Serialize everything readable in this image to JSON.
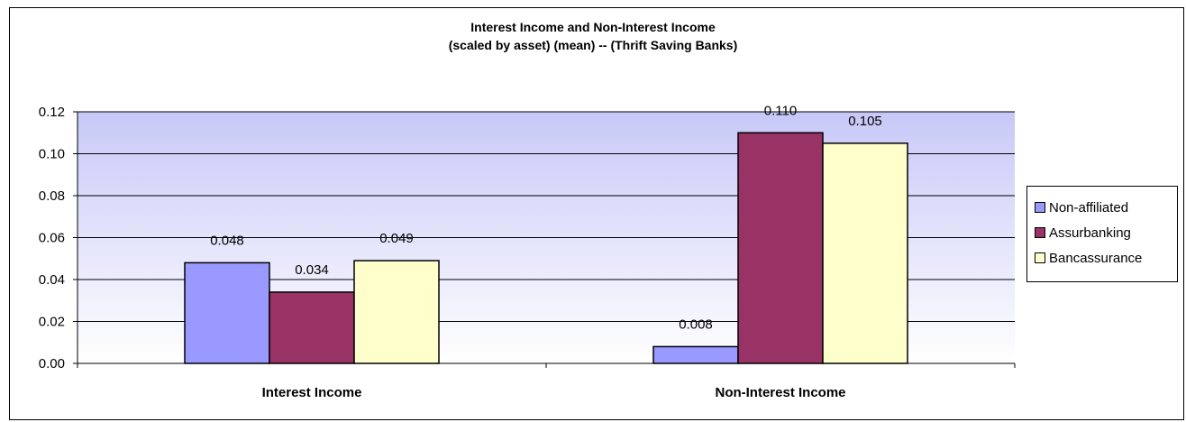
{
  "chart_data": {
    "type": "bar",
    "title": "Interest Income and Non-Interest Income",
    "subtitle": "(scaled by asset) (mean) -- (Thrift Saving Banks)",
    "categories": [
      "Interest Income",
      "Non-Interest Income"
    ],
    "series": [
      {
        "name": "Non-affiliated",
        "values": [
          0.048,
          0.008
        ],
        "labels": [
          "0.048",
          "0.008"
        ],
        "color": "#9999ff"
      },
      {
        "name": "Assurbanking",
        "values": [
          0.034,
          0.11
        ],
        "labels": [
          "0.034",
          "0.110"
        ],
        "color": "#993366"
      },
      {
        "name": "Bancassurance",
        "values": [
          0.049,
          0.105
        ],
        "labels": [
          "0.049",
          "0.105"
        ],
        "color": "#ffffcc"
      }
    ],
    "yticks": [
      "0.00",
      "0.02",
      "0.04",
      "0.06",
      "0.08",
      "0.10",
      "0.12"
    ],
    "ylim": [
      0,
      0.12
    ],
    "ystep": 0.02,
    "grid": true,
    "legend_position": "right",
    "plot_background": "gradient #c8c8f8 to #ffffff"
  }
}
